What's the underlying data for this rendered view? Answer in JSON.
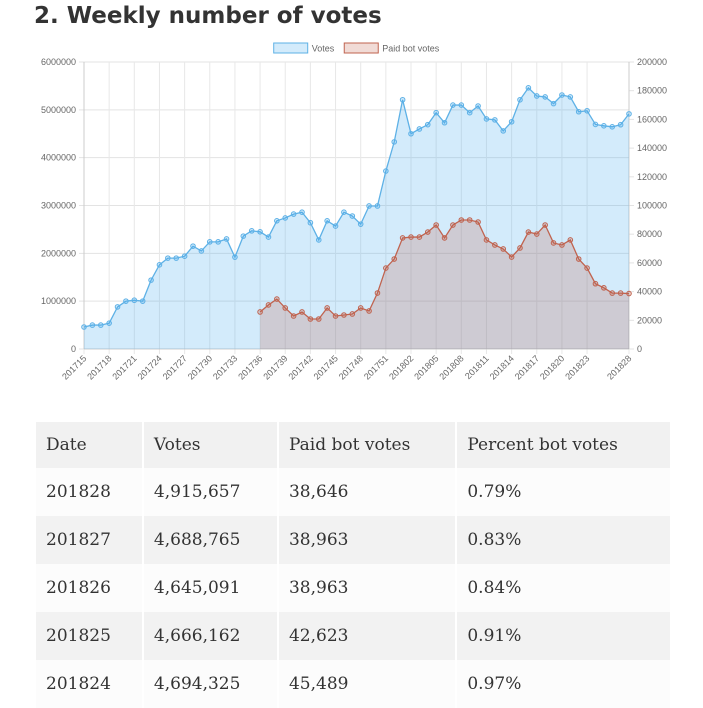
{
  "heading": "2. Weekly number of votes",
  "chart_data": {
    "type": "line",
    "categories": [
      "201715",
      null,
      null,
      "201718",
      null,
      null,
      "201721",
      null,
      null,
      "201724",
      null,
      null,
      "201727",
      null,
      null,
      "201730",
      null,
      null,
      "201733",
      null,
      null,
      "201736",
      null,
      null,
      "201739",
      null,
      null,
      "201742",
      null,
      null,
      "201745",
      null,
      null,
      "201748",
      null,
      null,
      "201751",
      null,
      null,
      "201802",
      null,
      null,
      "201805",
      null,
      null,
      "201808",
      null,
      null,
      "201811",
      null,
      null,
      "201814",
      null,
      null,
      "201817",
      null,
      null,
      "201820",
      null,
      null,
      "201823",
      null,
      null,
      null,
      null,
      "201828"
    ],
    "series": [
      {
        "name": "Votes",
        "color": "#5eb1e6",
        "fill": "rgba(54,162,235,0.22)",
        "axis": "y",
        "values": [
          460000,
          500000,
          500000,
          540000,
          880000,
          1000000,
          1020000,
          1000000,
          1440000,
          1760000,
          1900000,
          1900000,
          1940000,
          2150000,
          2050000,
          2240000,
          2240000,
          2300000,
          1920000,
          2360000,
          2470000,
          2450000,
          2340000,
          2680000,
          2740000,
          2820000,
          2860000,
          2640000,
          2280000,
          2680000,
          2570000,
          2860000,
          2780000,
          2610000,
          2990000,
          2990000,
          3720000,
          4330000,
          5210000,
          4500000,
          4600000,
          4690000,
          4940000,
          4730000,
          5100000,
          5100000,
          4940000,
          5080000,
          4810000,
          4790000,
          4560000,
          4750000,
          5210000,
          5460000,
          5290000,
          5270000,
          5130000,
          5310000,
          5270000,
          4960000,
          4980000,
          4694325,
          4666162,
          4645091,
          4688765,
          4915657
        ]
      },
      {
        "name": "Paid bot votes",
        "color": "#c0634f",
        "fill": "rgba(192,90,70,0.22)",
        "axis": "y2",
        "values": [
          null,
          null,
          null,
          null,
          null,
          null,
          null,
          null,
          null,
          null,
          null,
          null,
          null,
          null,
          null,
          null,
          null,
          null,
          null,
          null,
          null,
          25800,
          30700,
          34800,
          28600,
          23000,
          25800,
          20900,
          20900,
          28600,
          23000,
          23700,
          24400,
          28600,
          26500,
          39000,
          56400,
          62700,
          77400,
          78000,
          78000,
          81500,
          86400,
          77400,
          86400,
          89900,
          89900,
          88500,
          76000,
          72500,
          69700,
          64100,
          70400,
          81500,
          80100,
          86400,
          73900,
          72500,
          76000,
          62700,
          56400,
          45489,
          42623,
          38963,
          38963,
          38646
        ]
      }
    ],
    "ylim": [
      0,
      6000000
    ],
    "yticks": [
      0,
      1000000,
      2000000,
      3000000,
      4000000,
      5000000,
      6000000
    ],
    "y2lim": [
      0,
      200000
    ],
    "y2ticks": [
      0,
      20000,
      40000,
      60000,
      80000,
      100000,
      120000,
      140000,
      160000,
      180000,
      200000
    ],
    "grid": true,
    "legend": "top"
  },
  "table": {
    "columns": [
      "Date",
      "Votes",
      "Paid bot votes",
      "Percent bot votes"
    ],
    "rows": [
      [
        "201828",
        "4,915,657",
        "38,646",
        "0.79%"
      ],
      [
        "201827",
        "4,688,765",
        "38,963",
        "0.83%"
      ],
      [
        "201826",
        "4,645,091",
        "38,963",
        "0.84%"
      ],
      [
        "201825",
        "4,666,162",
        "42,623",
        "0.91%"
      ],
      [
        "201824",
        "4,694,325",
        "45,489",
        "0.97%"
      ]
    ]
  }
}
